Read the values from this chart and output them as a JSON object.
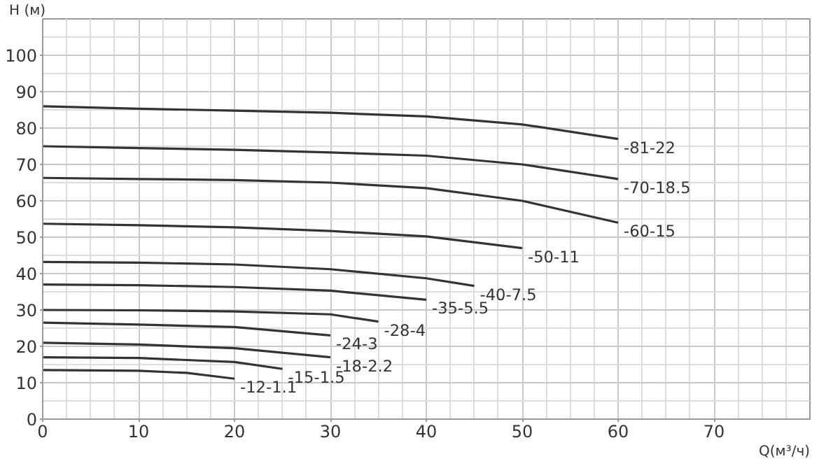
{
  "chart_data": {
    "type": "line",
    "xlabel": "Q(м³/ч)",
    "ylabel": "H (м)",
    "xlim": [
      0,
      80
    ],
    "ylim": [
      0,
      110
    ],
    "xticks": [
      0,
      10,
      20,
      30,
      40,
      50,
      60,
      70
    ],
    "yticks": [
      0,
      10,
      20,
      30,
      40,
      50,
      60,
      70,
      80,
      90,
      100
    ],
    "grid": true,
    "marker": "none",
    "line_style": "solid",
    "series": [
      {
        "name": "-81-22",
        "color": "#333333",
        "x": [
          0,
          10,
          20,
          30,
          40,
          50,
          60
        ],
        "values": [
          86,
          85.3,
          84.8,
          84.2,
          83.2,
          81,
          77
        ]
      },
      {
        "name": "-70-18.5",
        "color": "#333333",
        "x": [
          0,
          10,
          20,
          30,
          40,
          50,
          60
        ],
        "values": [
          75,
          74.5,
          74,
          73.3,
          72.4,
          70,
          66
        ]
      },
      {
        "name": "-60-15",
        "color": "#333333",
        "x": [
          0,
          10,
          20,
          30,
          40,
          50,
          60
        ],
        "values": [
          66.3,
          66,
          65.7,
          65,
          63.5,
          60,
          54
        ]
      },
      {
        "name": "-50-11",
        "color": "#333333",
        "x": [
          0,
          10,
          20,
          30,
          40,
          50
        ],
        "values": [
          53.7,
          53.3,
          52.7,
          51.7,
          50.2,
          47
        ]
      },
      {
        "name": "-40-7.5",
        "color": "#333333",
        "x": [
          0,
          10,
          20,
          30,
          40,
          45
        ],
        "values": [
          43.2,
          43,
          42.5,
          41.2,
          38.7,
          36.6
        ]
      },
      {
        "name": "-35-5.5",
        "color": "#333333",
        "x": [
          0,
          10,
          20,
          30,
          40
        ],
        "values": [
          37,
          36.8,
          36.3,
          35.3,
          32.8
        ]
      },
      {
        "name": "-28-4",
        "color": "#333333",
        "x": [
          0,
          10,
          20,
          30,
          35
        ],
        "values": [
          30,
          29.9,
          29.6,
          28.8,
          26.8
        ]
      },
      {
        "name": "-24-3",
        "color": "#333333",
        "x": [
          0,
          10,
          20,
          30
        ],
        "values": [
          26.5,
          26,
          25.3,
          23
        ]
      },
      {
        "name": "-18-2.2",
        "color": "#333333",
        "x": [
          0,
          10,
          20,
          30
        ],
        "values": [
          21,
          20.5,
          19.5,
          17
        ]
      },
      {
        "name": "-15-1.5",
        "color": "#333333",
        "x": [
          0,
          10,
          20,
          25
        ],
        "values": [
          17,
          16.8,
          15.7,
          13.8
        ]
      },
      {
        "name": "-12-1.1",
        "color": "#333333",
        "x": [
          0,
          10,
          15,
          20
        ],
        "values": [
          13.5,
          13.3,
          12.7,
          11.1
        ]
      }
    ]
  }
}
